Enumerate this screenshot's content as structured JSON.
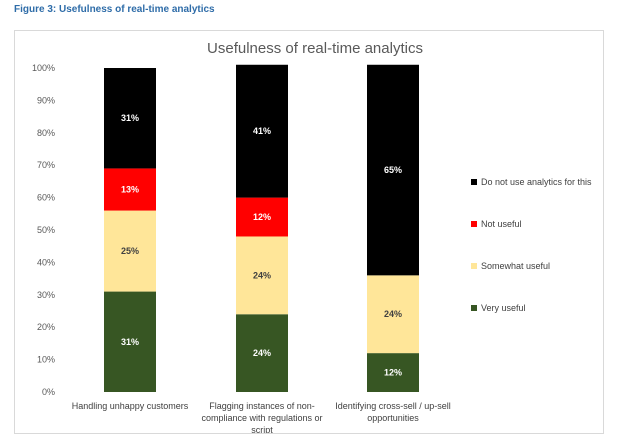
{
  "figure_caption": "Figure 3: Usefulness of real-time analytics",
  "chart_data": {
    "type": "bar",
    "stacked": true,
    "title": "Usefulness of real-time analytics",
    "xlabel": "",
    "ylabel": "",
    "ylim": [
      0,
      100
    ],
    "yticks": [
      "0%",
      "10%",
      "20%",
      "30%",
      "40%",
      "50%",
      "60%",
      "70%",
      "80%",
      "90%",
      "100%"
    ],
    "categories": [
      [
        "Handling unhappy customers"
      ],
      [
        "Flagging instances of non-",
        "compliance with regulations or",
        "script"
      ],
      [
        "Identifying cross-sell / up-sell",
        "opportunities"
      ]
    ],
    "series": [
      {
        "name": "Very useful",
        "color": "#375623",
        "label_color": "#ffffff",
        "values": [
          31,
          24,
          12
        ],
        "labels": [
          "31%",
          "24%",
          "12%"
        ]
      },
      {
        "name": "Somewhat useful",
        "color": "#ffe699",
        "label_color": "#404040",
        "values": [
          25,
          24,
          24
        ],
        "labels": [
          "25%",
          "24%",
          "24%"
        ]
      },
      {
        "name": "Not useful",
        "color": "#ff0000",
        "label_color": "#ffffff",
        "values": [
          13,
          12,
          0
        ],
        "labels": [
          "13%",
          "12%",
          ""
        ]
      },
      {
        "name": "Do not use analytics for this",
        "color": "#000000",
        "label_color": "#ffffff",
        "values": [
          31,
          41,
          65
        ],
        "labels": [
          "31%",
          "41%",
          "65%"
        ]
      }
    ],
    "legend_position": "right",
    "legend_order": [
      "Do not use analytics for this",
      "Not useful",
      "Somewhat useful",
      "Very useful"
    ],
    "grid": false
  }
}
